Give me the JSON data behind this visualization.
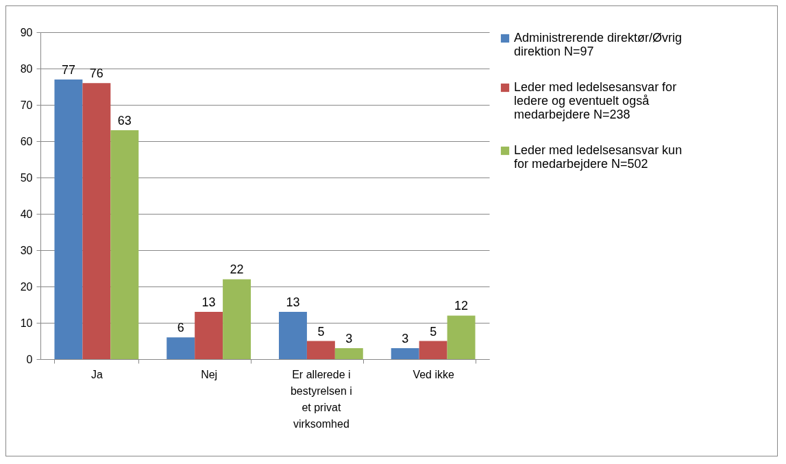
{
  "chart_data": {
    "type": "bar",
    "categories": [
      "Ja",
      "Nej",
      "Er allerede i bestyrelsen i et privat virksomhed",
      "Ved ikke"
    ],
    "series": [
      {
        "name": "Administrerende direktør/Øvrig direktion N=97",
        "color": "#4f81bd",
        "values": [
          77,
          6,
          13,
          3
        ]
      },
      {
        "name": "Leder med ledelsesansvar for ledere og eventuelt også medarbejdere N=238",
        "color": "#c0504d",
        "values": [
          76,
          13,
          5,
          5
        ]
      },
      {
        "name": "Leder med ledelsesansvar kun for medarbejdere N=502",
        "color": "#9bbb59",
        "values": [
          63,
          22,
          3,
          12
        ]
      }
    ],
    "ylim": [
      0,
      90
    ],
    "yticks": [
      0,
      10,
      20,
      30,
      40,
      50,
      60,
      70,
      80,
      90
    ],
    "grid": "y",
    "legend": "right",
    "data_labels": true
  }
}
